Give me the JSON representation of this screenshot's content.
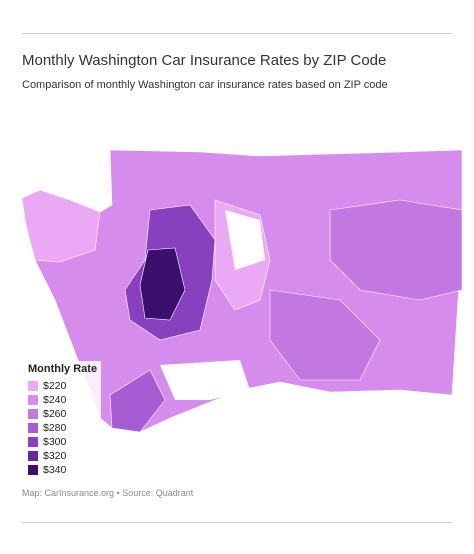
{
  "header": {
    "title": "Monthly Washington Car Insurance Rates by ZIP Code",
    "subtitle": "Comparison of monthly Washington car insurance rates based on ZIP code"
  },
  "legend": {
    "title": "Monthly Rate",
    "items": [
      {
        "label": "$220",
        "color": "#eaa8f5"
      },
      {
        "label": "$240",
        "color": "#d68cec"
      },
      {
        "label": "$260",
        "color": "#c277e1"
      },
      {
        "label": "$280",
        "color": "#a75cd3"
      },
      {
        "label": "$300",
        "color": "#8840bf"
      },
      {
        "label": "$320",
        "color": "#6828a3"
      },
      {
        "label": "$340",
        "color": "#3c0f6e"
      }
    ]
  },
  "footer": {
    "source": "Map: CarInsurance.org • Source: Quadrant"
  }
}
